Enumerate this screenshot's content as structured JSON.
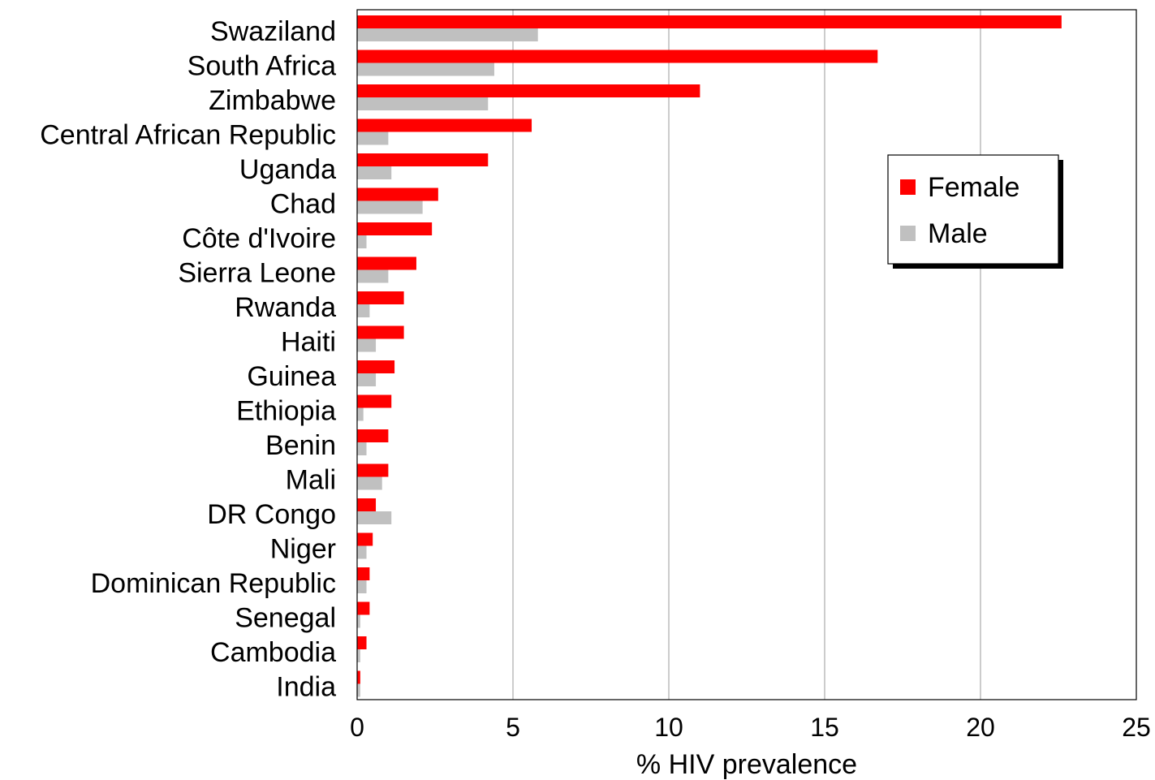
{
  "chart_data": {
    "type": "bar",
    "orientation": "horizontal",
    "categories": [
      "Swaziland",
      "South Africa",
      "Zimbabwe",
      "Central African Republic",
      "Uganda",
      "Chad",
      "Côte d'Ivoire",
      "Sierra Leone",
      "Rwanda",
      "Haiti",
      "Guinea",
      "Ethiopia",
      "Benin",
      "Mali",
      "DR Congo",
      "Niger",
      "Dominican Republic",
      "Senegal",
      "Cambodia",
      "India"
    ],
    "series": [
      {
        "name": "Female",
        "color": "#ff0000",
        "values": [
          22.6,
          16.7,
          11.0,
          5.6,
          4.2,
          2.6,
          2.4,
          1.9,
          1.5,
          1.5,
          1.2,
          1.1,
          1.0,
          1.0,
          0.6,
          0.5,
          0.4,
          0.4,
          0.3,
          0.1
        ]
      },
      {
        "name": "Male",
        "color": "#c0c0c0",
        "values": [
          5.8,
          4.4,
          4.2,
          1.0,
          1.1,
          2.1,
          0.3,
          1.0,
          0.4,
          0.6,
          0.6,
          0.2,
          0.3,
          0.8,
          1.1,
          0.3,
          0.3,
          0.1,
          0.1,
          0.1
        ]
      }
    ],
    "xlabel": "% HIV prevalence",
    "ylabel": "",
    "title": "",
    "xlim": [
      0,
      25
    ],
    "xticks": [
      0,
      5,
      10,
      15,
      20,
      25
    ],
    "xtick_labels": [
      "0",
      "5",
      "10",
      "15",
      "20",
      "25"
    ],
    "grid": "vertical",
    "legend": "upper-right"
  }
}
